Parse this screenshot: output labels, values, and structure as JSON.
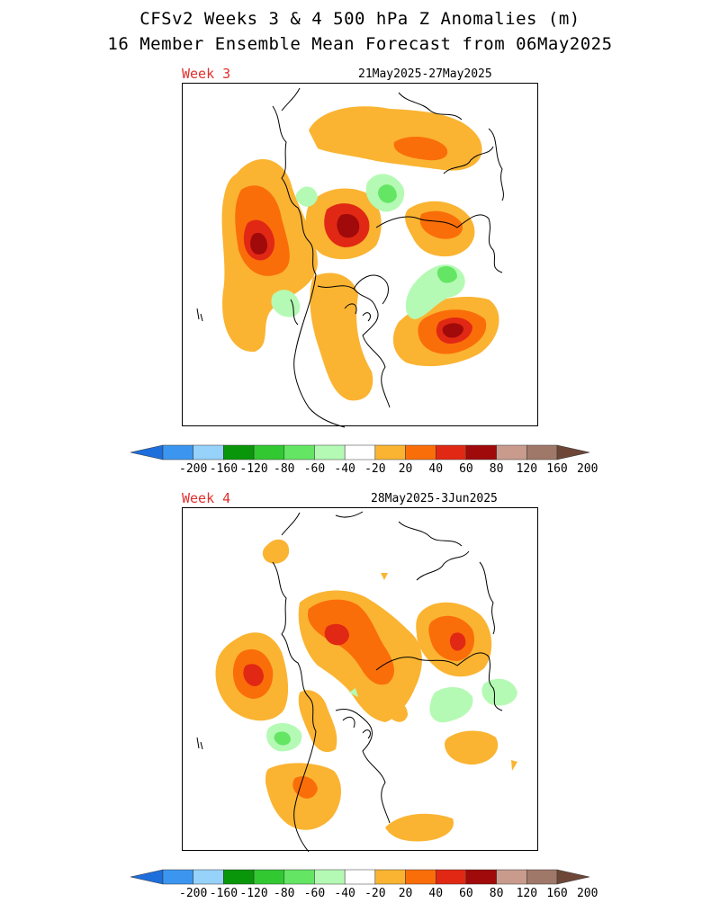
{
  "header": {
    "title_line1": "CFSv2 Weeks 3 & 4 500 hPa Z Anomalies (m)",
    "title_line2": "16 Member Ensemble Mean Forecast from 06May2025"
  },
  "panels": [
    {
      "week_label": "Week 3",
      "date_range": "21May2025-27May2025"
    },
    {
      "week_label": "Week 4",
      "date_range": "28May2025-3Jun2025"
    }
  ],
  "colorbar": {
    "tick_labels": [
      "-200",
      "-160",
      "-120",
      "-80",
      "-60",
      "-40",
      "-20",
      "20",
      "40",
      "60",
      "80",
      "120",
      "160",
      "200"
    ],
    "colors": [
      "#1e6edc",
      "#3c96f0",
      "#96d2fa",
      "#0a960a",
      "#32c832",
      "#64e664",
      "#b4fab4",
      "#ffffff",
      "#fab432",
      "#fa6e0a",
      "#e12814",
      "#a00a0a",
      "#c89b8c",
      "#a07869",
      "#6e4637"
    ]
  },
  "chart_data": {
    "type": "map",
    "projection": "north polar stereographic",
    "variable": "500 hPa Z Anomalies (m)",
    "contour_levels": [
      -200,
      -160,
      -120,
      -80,
      -60,
      -40,
      -20,
      20,
      40,
      60,
      80,
      120,
      160,
      200
    ]
  }
}
